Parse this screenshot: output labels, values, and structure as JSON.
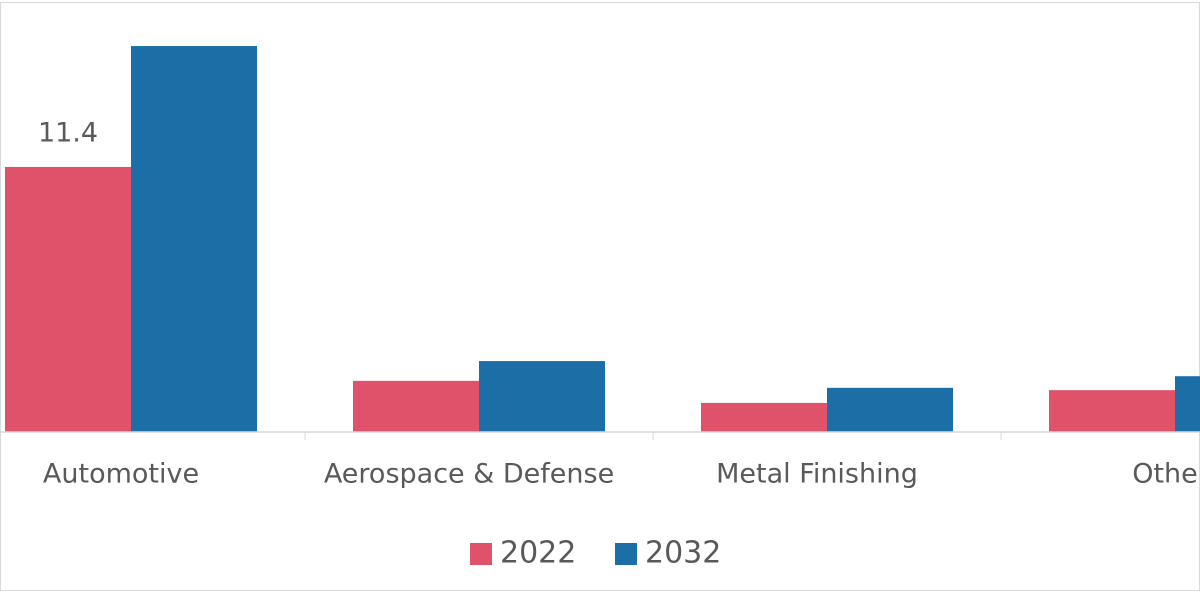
{
  "chart_data": {
    "type": "bar",
    "categories": [
      "Automotive",
      "Aerospace & Defense",
      "Metal Finishing",
      "Othe"
    ],
    "series": [
      {
        "name": "2022",
        "color": "#e0526a",
        "values": [
          11.4,
          2.2,
          1.25,
          1.8
        ]
      },
      {
        "name": "2032",
        "color": "#1b6fa6",
        "values": [
          16.6,
          3.05,
          1.9,
          2.4
        ]
      }
    ],
    "ylim": [
      0,
      18
    ]
  }
}
